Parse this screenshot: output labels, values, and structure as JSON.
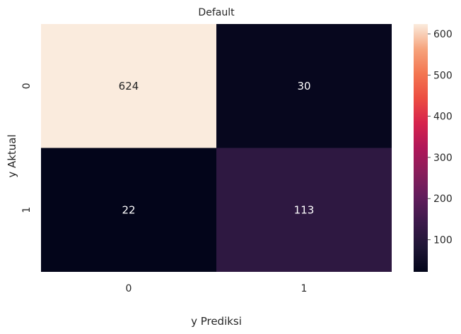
{
  "chart_data": {
    "type": "heatmap",
    "title": "Default",
    "xlabel": "y Prediksi",
    "ylabel": "y Aktual",
    "x_categories": [
      "0",
      "1"
    ],
    "y_categories": [
      "0",
      "1"
    ],
    "values": [
      [
        624,
        30
      ],
      [
        22,
        113
      ]
    ],
    "colormap": "rocket",
    "colorbar": {
      "range": [
        22,
        624
      ],
      "ticks": [
        100,
        200,
        300,
        400,
        500,
        600
      ],
      "tick_labels": [
        "100",
        "200",
        "300",
        "400",
        "500",
        "600"
      ]
    },
    "grid": false,
    "annotations": true
  }
}
